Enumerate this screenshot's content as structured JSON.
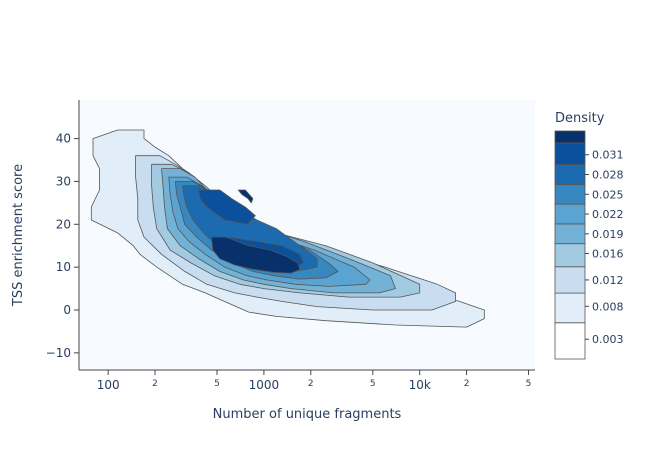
{
  "chart_data": {
    "type": "contour",
    "title": "",
    "xlabel": "Number of unique fragments",
    "ylabel": "TSS enrichment score",
    "x_scale": "log",
    "xlim": [
      65,
      55000
    ],
    "ylim": [
      -14,
      49
    ],
    "x_ticks": [
      {
        "value": 100,
        "label": "100",
        "major": true
      },
      {
        "value": 200,
        "label": "2",
        "major": false
      },
      {
        "value": 500,
        "label": "5",
        "major": false
      },
      {
        "value": 1000,
        "label": "1000",
        "major": true
      },
      {
        "value": 2000,
        "label": "2",
        "major": false
      },
      {
        "value": 5000,
        "label": "5",
        "major": false
      },
      {
        "value": 10000,
        "label": "10k",
        "major": true
      },
      {
        "value": 20000,
        "label": "2",
        "major": false
      },
      {
        "value": 50000,
        "label": "5",
        "major": false
      }
    ],
    "y_ticks": [
      {
        "value": -10,
        "label": "−10"
      },
      {
        "value": 0,
        "label": "0"
      },
      {
        "value": 10,
        "label": "10"
      },
      {
        "value": 20,
        "label": "20"
      },
      {
        "value": 30,
        "label": "30"
      },
      {
        "value": 40,
        "label": "40"
      }
    ],
    "grid": false,
    "plot_background": "#f7fbff",
    "colorbar": {
      "title": "Density",
      "range": [
        0,
        0.0346
      ],
      "tick_values": [
        0.003,
        0.008,
        0.012,
        0.016,
        0.019,
        0.022,
        0.025,
        0.028,
        0.031
      ],
      "tick_labels": [
        "0.003",
        "0.008",
        "0.012",
        "0.016",
        "0.019",
        "0.022",
        "0.025",
        "0.028",
        "0.031"
      ],
      "colors": [
        "#ffffff",
        "#e1edf8",
        "#c9ddf0",
        "#a2cbe2",
        "#72b2d7",
        "#5ba3d0",
        "#3787c0",
        "#1c6bb0",
        "#0a509d",
        "#08306b"
      ]
    },
    "contours": [
      {
        "level": 0.0015,
        "color": "#e1edf8",
        "points": [
          [
            115,
            42
          ],
          [
            170,
            42
          ],
          [
            170,
            40
          ],
          [
            200,
            38
          ],
          [
            245,
            36
          ],
          [
            300,
            33
          ],
          [
            360,
            31
          ],
          [
            420,
            28
          ],
          [
            600,
            24
          ],
          [
            900,
            19
          ],
          [
            1300,
            16
          ],
          [
            2000,
            14
          ],
          [
            4000,
            10
          ],
          [
            9000,
            5
          ],
          [
            18000,
            2
          ],
          [
            26000,
            0
          ],
          [
            26000,
            -2
          ],
          [
            20000,
            -4
          ],
          [
            7000,
            -3.5
          ],
          [
            2500,
            -2.5
          ],
          [
            1200,
            -1.5
          ],
          [
            800,
            -0.5
          ],
          [
            600,
            1.5
          ],
          [
            420,
            4
          ],
          [
            300,
            6
          ],
          [
            205,
            10
          ],
          [
            160,
            13
          ],
          [
            145,
            15
          ],
          [
            115,
            18
          ],
          [
            78,
            21
          ],
          [
            78,
            24
          ],
          [
            88,
            28
          ],
          [
            88,
            33
          ],
          [
            80,
            36
          ],
          [
            80,
            40
          ]
        ]
      },
      {
        "level": 0.004,
        "color": "#c9ddf0",
        "points": [
          [
            150,
            36
          ],
          [
            215,
            36
          ],
          [
            270,
            34
          ],
          [
            330,
            32
          ],
          [
            420,
            29
          ],
          [
            550,
            25
          ],
          [
            900,
            20
          ],
          [
            1500,
            16
          ],
          [
            2500,
            14
          ],
          [
            6000,
            10
          ],
          [
            13000,
            6
          ],
          [
            17000,
            4
          ],
          [
            17000,
            2
          ],
          [
            12000,
            0
          ],
          [
            5000,
            0
          ],
          [
            2200,
            0.8
          ],
          [
            1300,
            2
          ],
          [
            900,
            3
          ],
          [
            650,
            4
          ],
          [
            430,
            6
          ],
          [
            310,
            9
          ],
          [
            220,
            13
          ],
          [
            170,
            17
          ],
          [
            155,
            21
          ],
          [
            155,
            26
          ],
          [
            150,
            31
          ]
        ]
      },
      {
        "level": 0.0095,
        "color": "#a2cbe2",
        "points": [
          [
            190,
            34
          ],
          [
            255,
            34
          ],
          [
            330,
            32
          ],
          [
            400,
            29
          ],
          [
            500,
            26
          ],
          [
            750,
            21
          ],
          [
            1200,
            18
          ],
          [
            2500,
            15
          ],
          [
            5000,
            11
          ],
          [
            10000,
            6
          ],
          [
            10000,
            4
          ],
          [
            7500,
            3
          ],
          [
            3500,
            3
          ],
          [
            1700,
            4
          ],
          [
            1000,
            5
          ],
          [
            700,
            6
          ],
          [
            480,
            8
          ],
          [
            340,
            11
          ],
          [
            250,
            14
          ],
          [
            205,
            19
          ],
          [
            195,
            24
          ],
          [
            190,
            29
          ]
        ]
      },
      {
        "level": 0.0138,
        "color": "#72b2d7",
        "points": [
          [
            220,
            33
          ],
          [
            290,
            33
          ],
          [
            360,
            31
          ],
          [
            460,
            27
          ],
          [
            650,
            22
          ],
          [
            1000,
            19
          ],
          [
            1800,
            16
          ],
          [
            3500,
            12
          ],
          [
            6500,
            8
          ],
          [
            7000,
            5
          ],
          [
            5500,
            4
          ],
          [
            2800,
            4
          ],
          [
            1500,
            5
          ],
          [
            1000,
            6
          ],
          [
            740,
            7
          ],
          [
            520,
            9
          ],
          [
            380,
            12
          ],
          [
            290,
            15
          ],
          [
            240,
            19
          ],
          [
            230,
            24
          ],
          [
            225,
            29
          ]
        ]
      },
      {
        "level": 0.0175,
        "color": "#5ba3d0",
        "points": [
          [
            245,
            31
          ],
          [
            320,
            31
          ],
          [
            400,
            29
          ],
          [
            540,
            25
          ],
          [
            750,
            21
          ],
          [
            1200,
            17
          ],
          [
            2100,
            14
          ],
          [
            3800,
            10
          ],
          [
            4800,
            7
          ],
          [
            4500,
            6
          ],
          [
            2600,
            5.5
          ],
          [
            1600,
            6
          ],
          [
            1050,
            7
          ],
          [
            780,
            8
          ],
          [
            560,
            10
          ],
          [
            420,
            13
          ],
          [
            330,
            16
          ],
          [
            280,
            19
          ],
          [
            260,
            23
          ],
          [
            250,
            27
          ]
        ]
      },
      {
        "level": 0.0205,
        "color": "#3787c0",
        "points": [
          [
            270,
            30
          ],
          [
            350,
            30
          ],
          [
            440,
            28
          ],
          [
            600,
            24
          ],
          [
            880,
            20
          ],
          [
            1300,
            17
          ],
          [
            1950,
            14
          ],
          [
            2600,
            11
          ],
          [
            3000,
            9
          ],
          [
            2500,
            7.5
          ],
          [
            1700,
            7.2
          ],
          [
            1150,
            8
          ],
          [
            850,
            9
          ],
          [
            620,
            11
          ],
          [
            460,
            14
          ],
          [
            370,
            17
          ],
          [
            310,
            20
          ],
          [
            290,
            24
          ],
          [
            275,
            27
          ]
        ]
      },
      {
        "level": 0.0235,
        "color": "#1c6bb0",
        "points": [
          [
            300,
            29
          ],
          [
            390,
            29
          ],
          [
            480,
            27
          ],
          [
            650,
            24
          ],
          [
            900,
            21
          ],
          [
            1200,
            19
          ],
          [
            1700,
            15
          ],
          [
            2200,
            12
          ],
          [
            2200,
            10
          ],
          [
            1600,
            9
          ],
          [
            1150,
            9
          ],
          [
            850,
            10
          ],
          [
            640,
            12
          ],
          [
            500,
            15
          ],
          [
            410,
            18
          ],
          [
            350,
            21
          ],
          [
            320,
            24
          ],
          [
            305,
            27
          ]
        ]
      },
      {
        "level": 0.0265,
        "color": "#0a509d",
        "points": [
          [
            380,
            28
          ],
          [
            520,
            28
          ],
          [
            620,
            26
          ],
          [
            760,
            24
          ],
          [
            880,
            22
          ],
          [
            780,
            20
          ],
          [
            560,
            21
          ],
          [
            430,
            24
          ],
          [
            390,
            26
          ]
        ]
      },
      {
        "level": 0.0265,
        "color": "#0a509d",
        "points": [
          [
            590,
            17
          ],
          [
            900,
            16
          ],
          [
            1300,
            15
          ],
          [
            1700,
            13
          ],
          [
            1800,
            11
          ],
          [
            1500,
            9.5
          ],
          [
            1100,
            9.5
          ],
          [
            800,
            10.5
          ],
          [
            630,
            12.5
          ],
          [
            580,
            15
          ]
        ]
      },
      {
        "level": 0.0295,
        "color": "#08306b",
        "points": [
          [
            460,
            17
          ],
          [
            570,
            17
          ],
          [
            800,
            15
          ],
          [
            1100,
            14
          ],
          [
            1400,
            12.5
          ],
          [
            1650,
            11
          ],
          [
            1700,
            9.5
          ],
          [
            1500,
            8.6
          ],
          [
            1150,
            8.8
          ],
          [
            850,
            9.5
          ],
          [
            650,
            10.5
          ],
          [
            520,
            12
          ],
          [
            470,
            14
          ]
        ]
      },
      {
        "level": 0.0295,
        "color": "#08306b",
        "points": [
          [
            685,
            28
          ],
          [
            760,
            28
          ],
          [
            850,
            26
          ],
          [
            830,
            25
          ],
          [
            790,
            26
          ],
          [
            720,
            27
          ]
        ]
      }
    ]
  }
}
